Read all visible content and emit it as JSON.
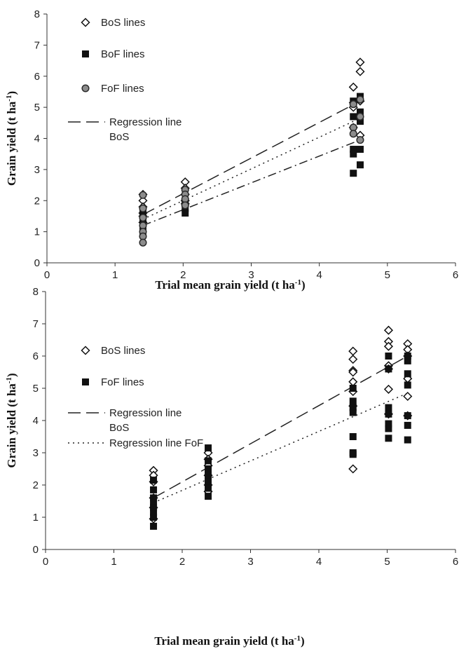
{
  "chart_data": [
    {
      "type": "scatter",
      "xlabel": "Trial mean grain yield (t ha-1)",
      "ylabel": "Grain yield (t ha-1)",
      "xlim": [
        0,
        6
      ],
      "ylim": [
        0,
        8
      ],
      "x_ticks": [
        "0",
        "1",
        "2",
        "3",
        "4",
        "5",
        "6"
      ],
      "y_ticks": [
        "0",
        "1",
        "2",
        "3",
        "4",
        "5",
        "6",
        "7",
        "8"
      ],
      "grid": false,
      "legend": [
        {
          "label": "BoS lines",
          "marker": "diamond-open"
        },
        {
          "label": "BoF lines",
          "marker": "square-filled"
        },
        {
          "label": "FoF lines",
          "marker": "circle-gray"
        },
        {
          "label": "Regression line",
          "label2": "BoS",
          "line": "dashed"
        }
      ],
      "series": [
        {
          "name": "BoS lines",
          "marker": "diamond-open",
          "x": [
            1.41,
            1.41,
            1.41,
            1.41,
            1.41,
            1.41,
            2.03,
            2.03,
            2.03,
            2.03,
            2.03,
            4.5,
            4.5,
            4.5,
            4.5,
            4.6,
            4.6,
            4.6,
            4.6
          ],
          "y": [
            2.2,
            2.0,
            1.8,
            1.6,
            1.5,
            1.3,
            2.6,
            2.4,
            2.2,
            2.0,
            1.9,
            5.65,
            5.15,
            5.0,
            4.35,
            6.45,
            6.15,
            5.2,
            4.1
          ]
        },
        {
          "name": "BoF lines",
          "marker": "square-filled",
          "x": [
            1.41,
            1.41,
            1.41,
            1.41,
            1.41,
            1.41,
            2.03,
            2.03,
            2.03,
            4.5,
            4.5,
            4.5,
            4.5,
            4.5,
            4.6,
            4.6,
            4.6,
            4.6,
            4.6
          ],
          "y": [
            1.7,
            1.5,
            1.3,
            1.2,
            1.0,
            0.9,
            1.95,
            1.75,
            1.6,
            5.2,
            4.7,
            3.65,
            3.5,
            2.88,
            5.35,
            4.85,
            4.55,
            3.65,
            3.15
          ]
        },
        {
          "name": "FoF lines",
          "marker": "circle-gray",
          "x": [
            1.41,
            1.41,
            1.41,
            1.41,
            1.41,
            1.41,
            1.41,
            2.03,
            2.03,
            2.03,
            2.03,
            4.5,
            4.5,
            4.5,
            4.6,
            4.6,
            4.6
          ],
          "y": [
            2.18,
            1.75,
            1.45,
            1.2,
            1.0,
            0.85,
            0.65,
            2.35,
            2.2,
            2.05,
            1.85,
            5.1,
            4.35,
            4.15,
            5.25,
            4.7,
            3.95
          ]
        }
      ],
      "lines": [
        {
          "style": "dashed",
          "x": [
            1.41,
            4.6
          ],
          "y": [
            1.55,
            5.2
          ]
        },
        {
          "style": "dotted",
          "x": [
            1.41,
            4.6
          ],
          "y": [
            1.4,
            4.65
          ]
        },
        {
          "style": "dashdot",
          "x": [
            1.41,
            4.6
          ],
          "y": [
            1.2,
            3.95
          ]
        }
      ]
    },
    {
      "type": "scatter",
      "xlabel": "Trial mean grain yield (t ha-1)",
      "ylabel": "Grain yield (t ha-1)",
      "xlim": [
        0,
        6
      ],
      "ylim": [
        0,
        8
      ],
      "x_ticks": [
        "0",
        "1",
        "2",
        "3",
        "4",
        "5",
        "6"
      ],
      "y_ticks": [
        "0",
        "1",
        "2",
        "3",
        "4",
        "5",
        "6",
        "7",
        "8"
      ],
      "grid": false,
      "legend": [
        {
          "label": "BoS lines",
          "marker": "diamond-open"
        },
        {
          "label": "FoF lines",
          "marker": "square-filled"
        },
        {
          "label": "Regression line",
          "label2": "BoS",
          "line": "dashed"
        },
        {
          "label": "Regression line FoF",
          "line": "dotted"
        }
      ],
      "series": [
        {
          "name": "BoS lines",
          "marker": "diamond-open",
          "x": [
            1.58,
            1.58,
            1.58,
            1.58,
            1.58,
            1.58,
            2.38,
            2.38,
            2.38,
            2.38,
            2.38,
            2.38,
            4.5,
            4.5,
            4.5,
            4.5,
            4.5,
            4.5,
            4.5,
            4.5,
            5.02,
            5.02,
            5.02,
            5.02,
            5.02,
            5.02,
            5.02,
            5.3,
            5.3,
            5.3,
            5.3,
            5.3,
            5.3
          ],
          "y": [
            2.45,
            2.3,
            2.1,
            1.6,
            1.3,
            0.95,
            3.0,
            2.8,
            2.6,
            2.3,
            2.0,
            1.8,
            6.15,
            5.9,
            5.55,
            5.5,
            5.2,
            4.9,
            4.45,
            2.5,
            6.8,
            6.45,
            6.3,
            5.7,
            5.6,
            4.97,
            4.2,
            6.38,
            6.2,
            6.0,
            5.3,
            4.75,
            4.15
          ]
        },
        {
          "name": "FoF lines",
          "marker": "square-filled",
          "x": [
            1.58,
            1.58,
            1.58,
            1.58,
            1.58,
            1.58,
            1.58,
            1.58,
            2.38,
            2.38,
            2.38,
            2.38,
            2.38,
            2.38,
            2.38,
            4.5,
            4.5,
            4.5,
            4.5,
            4.5,
            4.5,
            4.5,
            5.02,
            5.02,
            5.02,
            5.02,
            5.02,
            5.02,
            5.02,
            5.3,
            5.3,
            5.3,
            5.3,
            5.3,
            5.3,
            5.3
          ],
          "y": [
            2.15,
            1.85,
            1.6,
            1.45,
            1.3,
            1.15,
            1.0,
            0.72,
            3.15,
            2.75,
            2.5,
            2.3,
            2.1,
            1.9,
            1.65,
            5.0,
            4.6,
            4.4,
            4.25,
            3.5,
            3.0,
            2.95,
            6.0,
            5.6,
            4.4,
            4.2,
            3.9,
            3.75,
            3.45,
            6.0,
            5.85,
            5.45,
            5.1,
            4.15,
            3.85,
            3.4
          ]
        }
      ],
      "lines": [
        {
          "style": "dashed",
          "x": [
            1.58,
            5.3
          ],
          "y": [
            1.6,
            6.0
          ]
        },
        {
          "style": "dotted",
          "x": [
            1.58,
            5.3
          ],
          "y": [
            1.45,
            4.85
          ]
        }
      ]
    }
  ]
}
